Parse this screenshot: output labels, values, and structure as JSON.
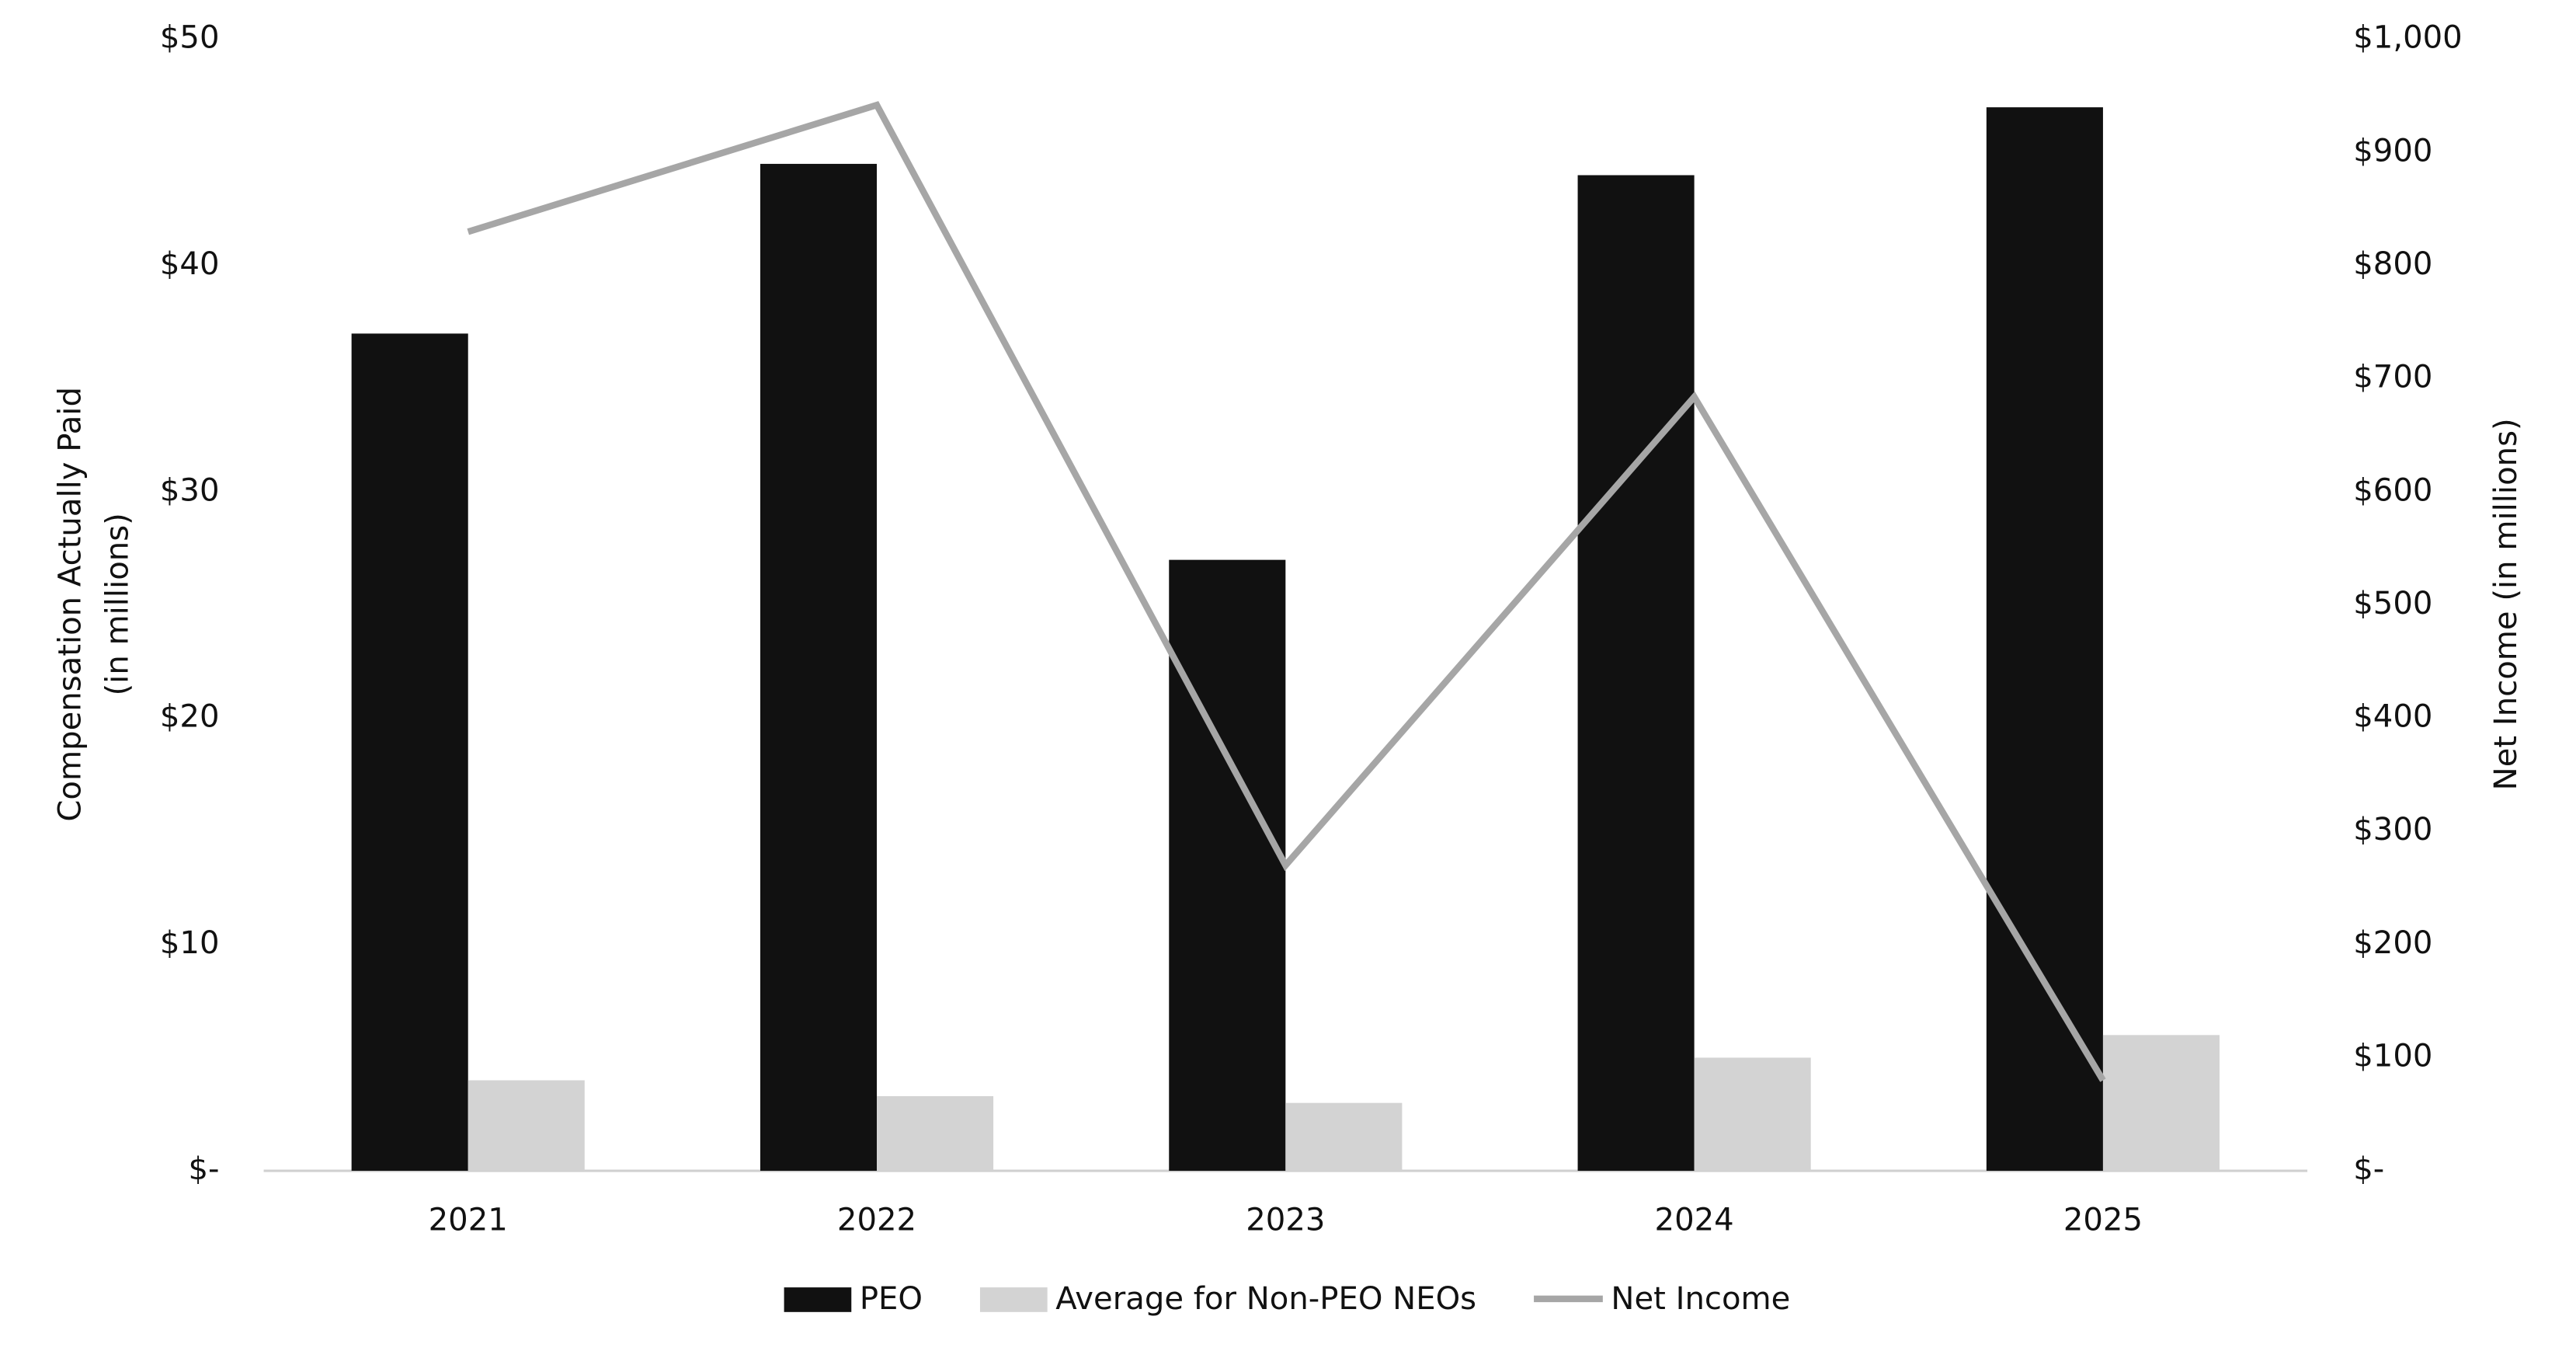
{
  "chart_data": {
    "type": "bar",
    "categories": [
      "2021",
      "2022",
      "2023",
      "2024",
      "2025"
    ],
    "series": [
      {
        "name": "PEO",
        "type": "bar",
        "color": "#111111",
        "values": [
          37,
          44.5,
          27,
          44,
          47
        ]
      },
      {
        "name": "Average for Non-PEO NEOs",
        "type": "bar",
        "color": "#d3d3d3",
        "values": [
          4,
          3.3,
          3,
          5,
          6
        ]
      },
      {
        "name": "Net Income",
        "type": "line",
        "axis": "y2",
        "color": "#a6a6a6",
        "values": [
          830,
          942,
          270,
          684,
          80
        ]
      }
    ],
    "ylabel": [
      "Compensation Actually Paid",
      "(in millions)"
    ],
    "y2label": "Net Income (in millions)",
    "ylim": [
      0,
      50
    ],
    "yticks": [
      {
        "value": 0,
        "label": "$-"
      },
      {
        "value": 10,
        "label": "$10"
      },
      {
        "value": 20,
        "label": "$20"
      },
      {
        "value": 30,
        "label": "$30"
      },
      {
        "value": 40,
        "label": "$40"
      },
      {
        "value": 50,
        "label": "$50"
      }
    ],
    "y2lim": [
      0,
      1000
    ],
    "y2ticks": [
      {
        "value": 0,
        "label": "$-"
      },
      {
        "value": 100,
        "label": "$100"
      },
      {
        "value": 200,
        "label": "$200"
      },
      {
        "value": 300,
        "label": "$300"
      },
      {
        "value": 400,
        "label": "$400"
      },
      {
        "value": 500,
        "label": "$500"
      },
      {
        "value": 600,
        "label": "$600"
      },
      {
        "value": 700,
        "label": "$700"
      },
      {
        "value": 800,
        "label": "$800"
      },
      {
        "value": 900,
        "label": "$900"
      },
      {
        "value": 1000,
        "label": "$1,000"
      }
    ],
    "grid": false,
    "legend": "bottom"
  }
}
